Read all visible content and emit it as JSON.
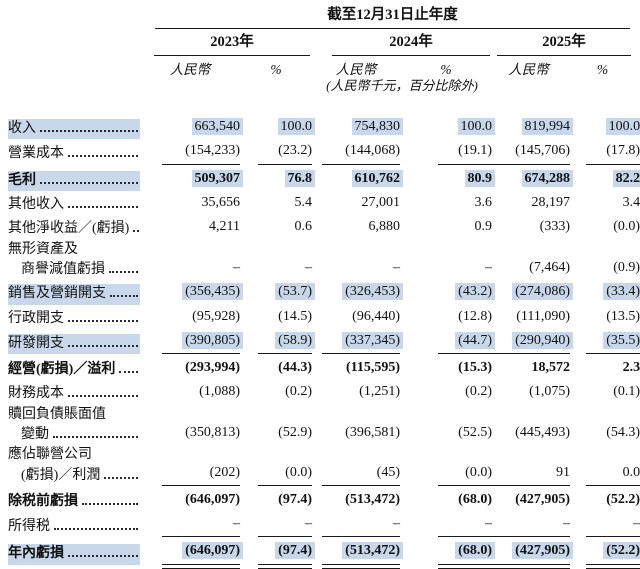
{
  "header": {
    "period_title": "截至12月31日止年度",
    "years": [
      "2023年",
      "2024年",
      "2025年"
    ],
    "currency_label": "人民幣",
    "percent_label": "%",
    "unit_note": "(人民幣千元，百分比除外)"
  },
  "colors": {
    "highlight_bg": "#c8d8ea",
    "line": "#1a1a1a"
  },
  "rows": [
    {
      "label": "收入",
      "values": [
        "663,540",
        "100.0",
        "754,830",
        "100.0",
        "819,994",
        "100.0"
      ],
      "bold": false,
      "highlight": true,
      "rule": "none"
    },
    {
      "label": "營業成本",
      "values": [
        "(154,233)",
        "(23.2)",
        "(144,068)",
        "(19.1)",
        "(145,706)",
        "(17.8)"
      ],
      "bold": false,
      "highlight": false,
      "rule": "single"
    },
    {
      "label": "毛利",
      "values": [
        "509,307",
        "76.8",
        "610,762",
        "80.9",
        "674,288",
        "82.2"
      ],
      "bold": true,
      "highlight": true,
      "rule": "none"
    },
    {
      "label": "其他收入",
      "values": [
        "35,656",
        "5.4",
        "27,001",
        "3.6",
        "28,197",
        "3.4"
      ],
      "bold": false,
      "highlight": false,
      "rule": "none"
    },
    {
      "label": "其他淨收益／(虧損)",
      "values": [
        "4,211",
        "0.6",
        "6,880",
        "0.9",
        "(333)",
        "(0.0)"
      ],
      "bold": false,
      "highlight": false,
      "rule": "none"
    },
    {
      "label_top": "無形資產及",
      "label": "商譽減值虧損",
      "values": [
        "–",
        "–",
        "–",
        "–",
        "(7,464)",
        "(0.9)"
      ],
      "bold": false,
      "highlight": false,
      "rule": "none"
    },
    {
      "label": "銷售及營銷開支",
      "values": [
        "(356,435)",
        "(53.7)",
        "(326,453)",
        "(43.2)",
        "(274,086)",
        "(33.4)"
      ],
      "bold": false,
      "highlight": true,
      "rule": "none"
    },
    {
      "label": "行政開支",
      "values": [
        "(95,928)",
        "(14.5)",
        "(96,440)",
        "(12.8)",
        "(111,090)",
        "(13.5)"
      ],
      "bold": false,
      "highlight": false,
      "rule": "none"
    },
    {
      "label": "研發開支",
      "values": [
        "(390,805)",
        "(58.9)",
        "(337,345)",
        "(44.7)",
        "(290,940)",
        "(35.5)"
      ],
      "bold": false,
      "highlight": true,
      "rule": "single"
    },
    {
      "label": "經營(虧損)／溢利",
      "values": [
        "(293,994)",
        "(44.3)",
        "(115,595)",
        "(15.3)",
        "18,572",
        "2.3"
      ],
      "bold": true,
      "highlight": false,
      "rule": "none"
    },
    {
      "label": "財務成本",
      "values": [
        "(1,088)",
        "(0.2)",
        "(1,251)",
        "(0.2)",
        "(1,075)",
        "(0.1)"
      ],
      "bold": false,
      "highlight": false,
      "rule": "none"
    },
    {
      "label_top": "贖回負債賬面值",
      "label": "變動",
      "values": [
        "(350,813)",
        "(52.9)",
        "(396,581)",
        "(52.5)",
        "(445,493)",
        "(54.3)"
      ],
      "bold": false,
      "highlight": false,
      "rule": "none"
    },
    {
      "label_top": "應佔聯營公司",
      "label": "(虧損)／利潤",
      "values": [
        "(202)",
        "(0.0)",
        "(45)",
        "(0.0)",
        "91",
        "0.0"
      ],
      "bold": false,
      "highlight": false,
      "rule": "single"
    },
    {
      "label": "除税前虧損",
      "values": [
        "(646,097)",
        "(97.4)",
        "(513,472)",
        "(68.0)",
        "(427,905)",
        "(52.2)"
      ],
      "bold": true,
      "highlight": false,
      "rule": "none"
    },
    {
      "label": "所得税",
      "values": [
        "–",
        "–",
        "–",
        "–",
        "–",
        "–"
      ],
      "bold": false,
      "highlight": false,
      "rule": "single"
    },
    {
      "label": "年內虧損",
      "values": [
        "(646,097)",
        "(97.4)",
        "(513,472)",
        "(68.0)",
        "(427,905)",
        "(52.2)"
      ],
      "bold": true,
      "highlight": true,
      "rule": "double"
    }
  ]
}
